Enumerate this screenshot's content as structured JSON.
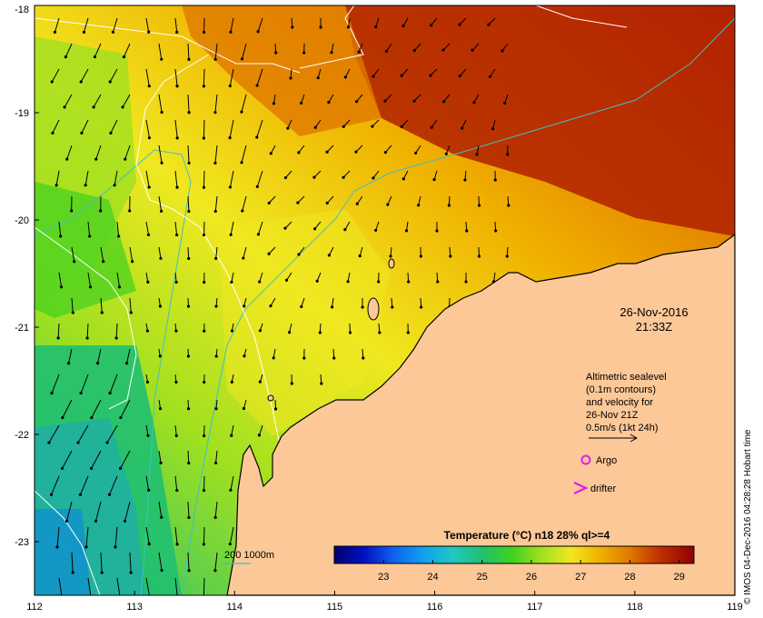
{
  "map": {
    "lon_range": [
      112,
      119
    ],
    "lat_range": [
      -23.5,
      -18
    ],
    "x_ticks": [
      112,
      113,
      114,
      115,
      116,
      117,
      118,
      119
    ],
    "y_ticks": [
      -18,
      -19,
      -20,
      -21,
      -22,
      -23
    ],
    "x_tick_labels": [
      "112",
      "113",
      "114",
      "115",
      "116",
      "117",
      "118",
      "119"
    ],
    "y_tick_labels": [
      "-18",
      "-19",
      "-20",
      "-21",
      "-22",
      "-23"
    ]
  },
  "datetime": {
    "date": "26-Nov-2016",
    "time": "21:33Z"
  },
  "legend": {
    "line1": "Altimetric sealevel",
    "line2": "(0.1m contours)",
    "line3": "and velocity for",
    "line4": "26-Nov 21Z",
    "scale": "0.5m/s (1kt 24h)",
    "argo": "Argo",
    "drifter": "drifter",
    "argo_color": "#e020e0",
    "drifter_color": "#e020e0"
  },
  "depth_legend": {
    "label": "200  1000m",
    "color_200": "#40c0c0"
  },
  "colorbar": {
    "title": "Temperature (°C) n18 28% ql>=4",
    "range": [
      22,
      29.3
    ],
    "ticks": [
      "23",
      "24",
      "25",
      "26",
      "27",
      "28",
      "29"
    ],
    "tick_values": [
      23,
      24,
      25,
      26,
      27,
      28,
      29
    ],
    "stops": [
      {
        "v": 22.0,
        "c": "#000070"
      },
      {
        "v": 22.6,
        "c": "#0010c0"
      },
      {
        "v": 23.2,
        "c": "#1060f0"
      },
      {
        "v": 23.8,
        "c": "#10a0f0"
      },
      {
        "v": 24.4,
        "c": "#20c8c0"
      },
      {
        "v": 25.0,
        "c": "#20c070"
      },
      {
        "v": 25.6,
        "c": "#40d020"
      },
      {
        "v": 26.2,
        "c": "#a0e020"
      },
      {
        "v": 26.8,
        "c": "#f0e820"
      },
      {
        "v": 27.4,
        "c": "#f0b000"
      },
      {
        "v": 28.0,
        "c": "#e07800"
      },
      {
        "v": 28.6,
        "c": "#c03000"
      },
      {
        "v": 29.3,
        "c": "#900000"
      }
    ]
  },
  "colors": {
    "land": "#fcc898",
    "coast": "#000000",
    "isobath": "#40c0c0",
    "contour": "#ffffff"
  },
  "credit": "© IMOS 04-Dec-2016 04:28:28 Hobart time"
}
